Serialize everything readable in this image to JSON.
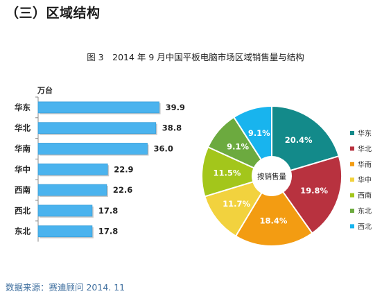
{
  "header": {
    "section_title": "（三）区域结构",
    "figure_title": "图 3　2014 年 9 月中国平板电脑市场区域销售量与结构"
  },
  "footer": {
    "source": "数据来源：赛迪顾问 2014. 11"
  },
  "colors": {
    "bar": "#4ab3ee",
    "bar_edge": "#3a9fd8",
    "华东": "#138a8a",
    "华北": "#b8323f",
    "华南": "#f39c12",
    "华中": "#f2d23e",
    "西南": "#a3c61b",
    "东北": "#6caa3f",
    "西北": "#18b4ee"
  },
  "chart_data": [
    {
      "type": "bar",
      "orientation": "horizontal",
      "unit_label": "万台",
      "categories": [
        "华东",
        "华北",
        "华南",
        "华中",
        "西南",
        "西北",
        "东北"
      ],
      "values": [
        39.9,
        38.8,
        36.0,
        22.9,
        22.6,
        17.8,
        17.8
      ],
      "value_labels": [
        "39.9",
        "38.8",
        "36.0",
        "22.9",
        "22.6",
        "17.8",
        "17.8"
      ],
      "xlim": [
        0,
        40
      ]
    },
    {
      "type": "pie",
      "donut": true,
      "center_label": "按销售量",
      "slices": [
        {
          "name": "华东",
          "value": 20.4,
          "label": "20.4%"
        },
        {
          "name": "华北",
          "value": 19.8,
          "label": "19.8%"
        },
        {
          "name": "华南",
          "value": 18.4,
          "label": "18.4%"
        },
        {
          "name": "华中",
          "value": 11.7,
          "label": "11.7%"
        },
        {
          "name": "西南",
          "value": 11.5,
          "label": "11.5%"
        },
        {
          "name": "东北",
          "value": 9.1,
          "label": "9.1%"
        },
        {
          "name": "西北",
          "value": 9.1,
          "label": "9.1%"
        }
      ],
      "legend": {
        "placement": "right",
        "entries": [
          "华东",
          "华北",
          "华南",
          "华中",
          "西南",
          "东北",
          "西北"
        ]
      }
    }
  ]
}
